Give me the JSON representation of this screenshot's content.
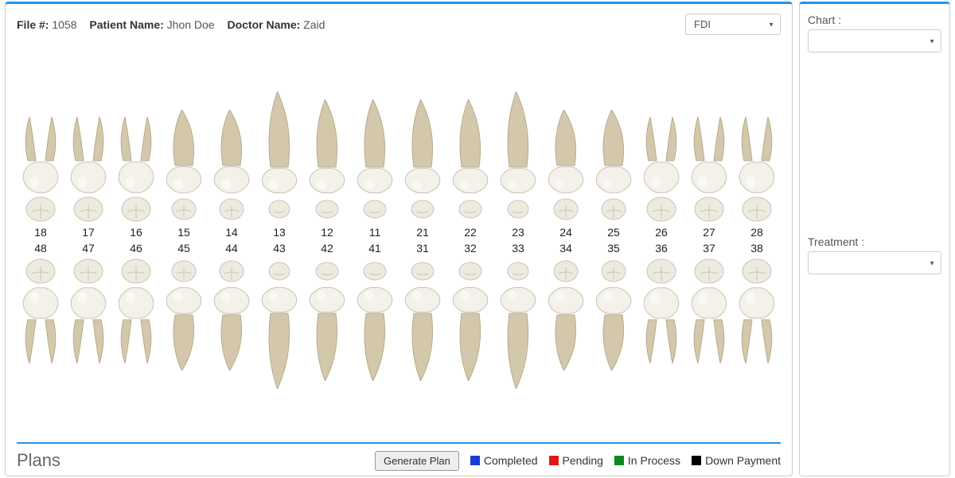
{
  "header": {
    "file_label": "File #:",
    "file_value": "1058",
    "patient_label": "Patient Name:",
    "patient_value": "Jhon Doe",
    "doctor_label": "Doctor Name:",
    "doctor_value": "Zaid",
    "numbering_system": "FDI"
  },
  "sidebar": {
    "chart_label": "Chart :",
    "treatment_label": "Treatment :"
  },
  "teeth": {
    "upper_numbers": [
      "18",
      "17",
      "16",
      "15",
      "14",
      "13",
      "12",
      "11",
      "21",
      "22",
      "23",
      "24",
      "25",
      "26",
      "27",
      "28"
    ],
    "lower_numbers": [
      "48",
      "47",
      "46",
      "45",
      "44",
      "43",
      "42",
      "41",
      "31",
      "32",
      "33",
      "34",
      "35",
      "36",
      "37",
      "38"
    ],
    "types_upper": [
      "molar",
      "molar",
      "molar",
      "premolar",
      "premolar",
      "canine",
      "incisor",
      "incisor",
      "incisor",
      "incisor",
      "canine",
      "premolar",
      "premolar",
      "molar",
      "molar",
      "molar"
    ],
    "types_lower": [
      "molar",
      "molar",
      "molar",
      "premolar",
      "premolar",
      "canine",
      "incisor",
      "incisor",
      "incisor",
      "incisor",
      "canine",
      "premolar",
      "premolar",
      "molar",
      "molar",
      "molar"
    ],
    "crown_color": "#f3f1ea",
    "crown_stroke": "#c9c4b4",
    "root_color": "#d4c8ac",
    "root_stroke": "#b8ab8d",
    "occlusal_fill": "#edeadf",
    "occlusal_stroke": "#c9c4b4"
  },
  "plans": {
    "title": "Plans",
    "generate_label": "Generate Plan",
    "legend": [
      {
        "label": "Completed",
        "color": "#1a3cd6"
      },
      {
        "label": "Pending",
        "color": "#e01818"
      },
      {
        "label": "In Process",
        "color": "#0a8a1e"
      },
      {
        "label": "Down Payment",
        "color": "#000000"
      }
    ]
  }
}
